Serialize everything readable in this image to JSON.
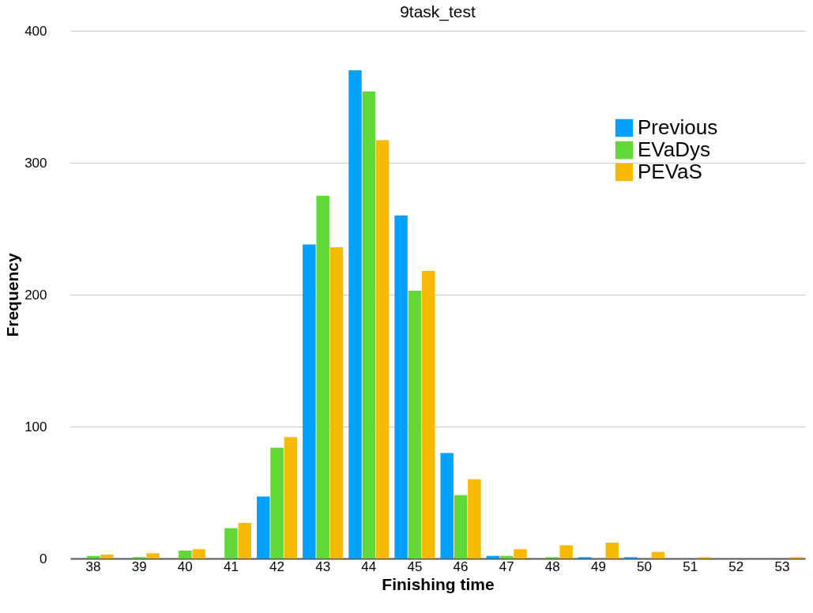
{
  "chart_data": {
    "type": "bar",
    "title": "9task_test",
    "xlabel": "Finishing time",
    "ylabel": "Frequency",
    "categories": [
      "38",
      "39",
      "40",
      "41",
      "42",
      "43",
      "44",
      "45",
      "46",
      "47",
      "48",
      "49",
      "50",
      "51",
      "52",
      "53"
    ],
    "series": [
      {
        "name": "Previous",
        "color": "#00a2ff",
        "values": [
          0,
          0,
          0,
          0,
          47,
          238,
          370,
          260,
          80,
          2,
          0,
          1,
          1,
          0,
          0,
          0
        ]
      },
      {
        "name": "EVaDys",
        "color": "#61d836",
        "values": [
          2,
          1,
          6,
          23,
          84,
          275,
          354,
          203,
          48,
          2,
          1,
          0,
          0,
          0,
          0,
          0
        ]
      },
      {
        "name": "PEVaS",
        "color": "#f8ba00",
        "values": [
          3,
          4,
          7,
          27,
          92,
          236,
          317,
          218,
          60,
          7,
          10,
          12,
          5,
          1,
          0,
          1
        ]
      }
    ],
    "ylim": [
      0,
      400
    ],
    "yticks": [
      0,
      100,
      200,
      300,
      400
    ],
    "grid": "y",
    "legend": "top right"
  }
}
